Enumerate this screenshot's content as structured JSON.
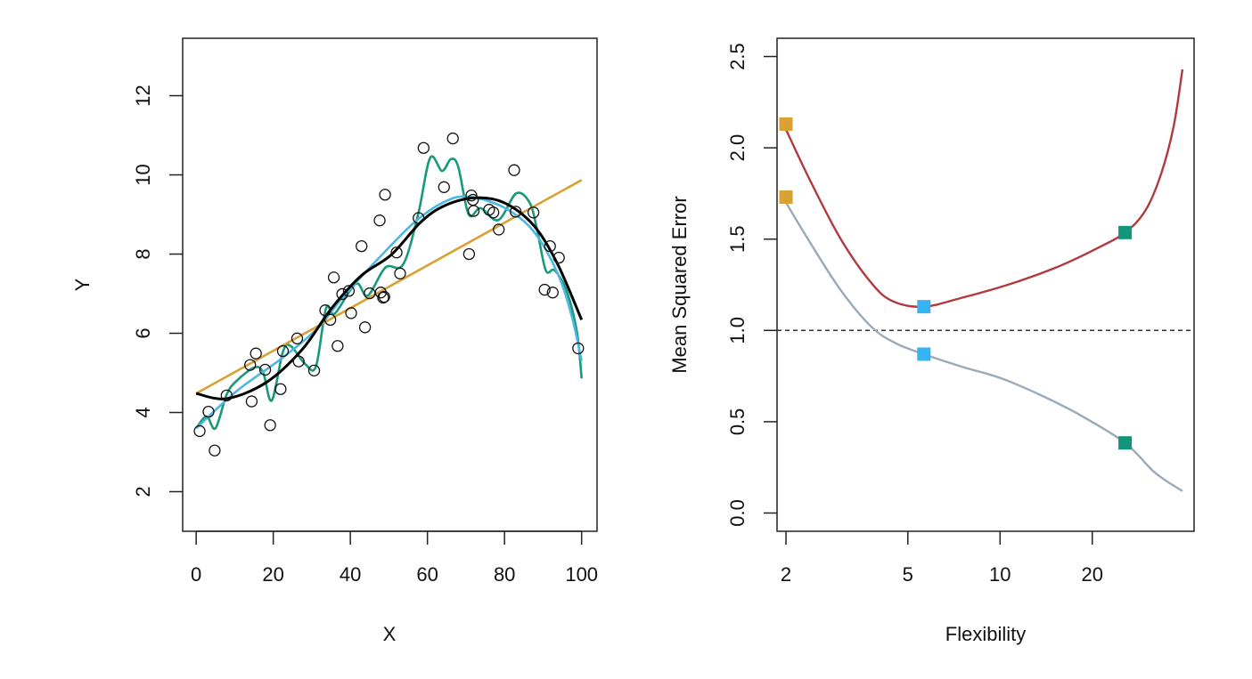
{
  "chart_data": [
    {
      "type": "scatter",
      "title": "",
      "xlabel": "X",
      "ylabel": "Y",
      "xlim": [
        -3.5,
        104
      ],
      "ylim": [
        1.0,
        13.45
      ],
      "xticks": [
        0,
        20,
        40,
        60,
        80,
        100
      ],
      "yticks": [
        2,
        4,
        6,
        8,
        10,
        12
      ],
      "grid": false,
      "points": [
        [
          0.9,
          3.53
        ],
        [
          3.2,
          4.02
        ],
        [
          4.8,
          3.04
        ],
        [
          7.9,
          4.43
        ],
        [
          14.0,
          5.2
        ],
        [
          14.4,
          4.28
        ],
        [
          15.5,
          5.49
        ],
        [
          17.9,
          5.08
        ],
        [
          19.2,
          3.68
        ],
        [
          21.9,
          4.59
        ],
        [
          22.5,
          5.55
        ],
        [
          26.2,
          5.87
        ],
        [
          26.6,
          5.29
        ],
        [
          30.6,
          5.06
        ],
        [
          33.5,
          6.58
        ],
        [
          34.8,
          6.34
        ],
        [
          35.7,
          7.41
        ],
        [
          36.7,
          5.68
        ],
        [
          37.9,
          6.99
        ],
        [
          39.6,
          7.07
        ],
        [
          40.2,
          6.51
        ],
        [
          42.9,
          8.2
        ],
        [
          43.8,
          6.15
        ],
        [
          45.0,
          7.01
        ],
        [
          47.6,
          8.85
        ],
        [
          47.9,
          7.03
        ],
        [
          48.5,
          6.9
        ],
        [
          49.0,
          9.5
        ],
        [
          48.8,
          6.92
        ],
        [
          52.0,
          8.04
        ],
        [
          52.9,
          7.51
        ],
        [
          57.7,
          8.91
        ],
        [
          59.0,
          10.68
        ],
        [
          64.3,
          9.69
        ],
        [
          66.6,
          10.92
        ],
        [
          70.8,
          8.0
        ],
        [
          71.4,
          9.48
        ],
        [
          71.8,
          9.37
        ],
        [
          72.0,
          9.09
        ],
        [
          76.0,
          9.12
        ],
        [
          77.1,
          9.05
        ],
        [
          78.5,
          8.62
        ],
        [
          82.5,
          10.12
        ],
        [
          82.9,
          9.07
        ],
        [
          87.5,
          9.05
        ],
        [
          90.4,
          7.1
        ],
        [
          91.8,
          8.2
        ],
        [
          92.5,
          7.03
        ],
        [
          94.1,
          7.91
        ],
        [
          99.1,
          5.62
        ]
      ],
      "series": [
        {
          "name": "linear-fit",
          "color": "#D9A032",
          "x": [
            0,
            100
          ],
          "y": [
            4.48,
            9.87
          ]
        },
        {
          "name": "true-function",
          "color": "#000000",
          "x": [
            0,
            7.9,
            18.2,
            27.5,
            35.2,
            42.9,
            50.6,
            58.3,
            64.4,
            72.1,
            79.8,
            87.5,
            93.7,
            100
          ],
          "y": [
            4.48,
            4.35,
            4.76,
            5.59,
            6.64,
            7.46,
            7.98,
            8.81,
            9.22,
            9.42,
            9.3,
            8.73,
            7.76,
            6.34
          ]
        },
        {
          "name": "smoothing-spline-moderate",
          "color": "#4DB6E2",
          "x": [
            0,
            10.5,
            22.1,
            31.3,
            38.3,
            47.5,
            56.7,
            64.4,
            70.6,
            79.8,
            87.5,
            93.7,
            97.5,
            100
          ],
          "y": [
            3.6,
            4.54,
            5.36,
            6.11,
            6.94,
            7.91,
            8.81,
            9.32,
            9.45,
            9.18,
            8.58,
            7.53,
            6.41,
            5.3
          ]
        },
        {
          "name": "smoothing-spline-flexible",
          "color": "#17997A",
          "x": [
            0,
            2.7,
            5.0,
            7.9,
            10.5,
            15.2,
            17.4,
            19.6,
            22.5,
            24.5,
            28.4,
            31.1,
            33.7,
            36,
            41.4,
            44.5,
            49.1,
            53.7,
            57.6,
            60.7,
            63.8,
            66.1,
            68,
            70.7,
            73.8,
            78.4,
            83,
            86.5,
            88.4,
            90.7,
            93,
            96.1,
            98.8,
            100
          ],
          "y": [
            3.6,
            3.9,
            3.6,
            4.45,
            4.8,
            5.14,
            5.0,
            4.3,
            5.53,
            5.68,
            5.21,
            5.17,
            6.63,
            6.5,
            7.25,
            6.95,
            7.66,
            7.74,
            9.01,
            10.43,
            10.1,
            10.4,
            10.2,
            9.0,
            9.16,
            8.86,
            9.53,
            9.3,
            8.64,
            7.59,
            7.59,
            7.07,
            6.02,
            4.86
          ]
        }
      ]
    },
    {
      "type": "line",
      "title": "",
      "xlabel": "Flexibility",
      "ylabel": "Mean Squared Error",
      "xscale": "log",
      "xlim": [
        1.87,
        43
      ],
      "ylim": [
        -0.1,
        2.6
      ],
      "xticks": [
        2,
        5,
        10,
        20
      ],
      "yticks": [
        "0.0",
        "0.5",
        "1.0",
        "1.5",
        "2.0",
        "2.5"
      ],
      "grid": false,
      "reference_line": {
        "y": 1.0,
        "style": "dashed",
        "color": "#333333"
      },
      "series": [
        {
          "name": "test-mse",
          "color": "#B03A3E",
          "x": [
            2.0,
            2.4,
            3.02,
            3.8,
            4.46,
            5.63,
            7.55,
            10.6,
            15.0,
            20.2,
            25.6,
            29.9,
            33.6,
            36.9,
            39.4
          ],
          "y": [
            2.1,
            1.82,
            1.5,
            1.26,
            1.16,
            1.13,
            1.18,
            1.25,
            1.34,
            1.44,
            1.536,
            1.66,
            1.86,
            2.12,
            2.43
          ]
        },
        {
          "name": "training-mse",
          "color": "#9AAAB8",
          "x": [
            2.0,
            2.4,
            3.02,
            3.8,
            4.56,
            5.64,
            7.55,
            10.0,
            13.4,
            18.1,
            25.6,
            32.1,
            39.4
          ],
          "y": [
            1.7,
            1.48,
            1.22,
            1.02,
            0.93,
            0.87,
            0.8,
            0.74,
            0.65,
            0.54,
            0.384,
            0.22,
            0.12
          ]
        }
      ],
      "markers": [
        {
          "name": "linear-test",
          "x": 2,
          "y": 2.13,
          "color": "#D9A032"
        },
        {
          "name": "linear-train",
          "x": 2,
          "y": 1.73,
          "color": "#D9A032"
        },
        {
          "name": "moderate-test",
          "x": 5.64,
          "y": 1.13,
          "color": "#35B3F2"
        },
        {
          "name": "moderate-train",
          "x": 5.64,
          "y": 0.87,
          "color": "#35B3F2"
        },
        {
          "name": "flexible-test",
          "x": 25.6,
          "y": 1.536,
          "color": "#12957A"
        },
        {
          "name": "flexible-train",
          "x": 25.6,
          "y": 0.384,
          "color": "#12957A"
        }
      ]
    }
  ]
}
